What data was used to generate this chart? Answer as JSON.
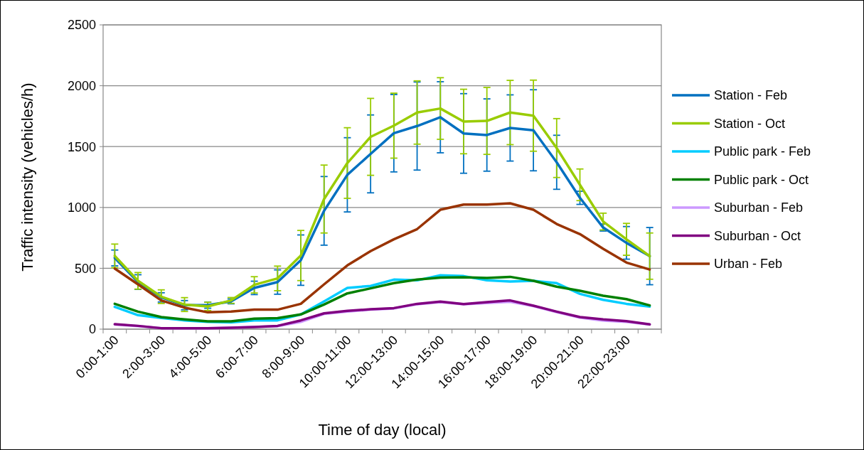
{
  "chart_data": {
    "type": "line",
    "xlabel": "Time of day (local)",
    "ylabel": "Traffic intensity (vehicles/h)",
    "categories": [
      "0:00-1:00",
      null,
      "2:00-3:00",
      null,
      "4:00-5:00",
      null,
      "6:00-7:00",
      null,
      "8:00-9:00",
      null,
      "10:00-11:00",
      null,
      "12:00-13:00",
      null,
      "14:00-15:00",
      null,
      "16:00-17:00",
      null,
      "18:00-19:00",
      null,
      "20:00-21:00",
      null,
      "22:00-23:00",
      null
    ],
    "ylim": [
      0,
      2500
    ],
    "yticks": [
      0,
      500,
      1000,
      1500,
      2000,
      2500
    ],
    "grid": "y",
    "legend": "right",
    "marker": "none",
    "line_style": "solid",
    "series": [
      {
        "name": "Station - Feb",
        "color": "#0070c0",
        "values": [
          585,
          387,
          261,
          197,
          197,
          228,
          339,
          387,
          567,
          972,
          1268,
          1440,
          1610,
          1669,
          1741,
          1608,
          1595,
          1653,
          1634,
          1371,
          1079,
          835,
          709,
          600
        ],
        "errors": [
          65,
          60,
          38,
          38,
          25,
          20,
          55,
          100,
          207,
          282,
          305,
          320,
          318,
          362,
          292,
          327,
          297,
          272,
          333,
          222,
          54,
          29,
          134,
          235
        ]
      },
      {
        "name": "Station - Oct",
        "color": "#99cc00",
        "values": [
          602,
          397,
          267,
          202,
          187,
          236,
          364,
          417,
          605,
          1069,
          1365,
          1580,
          1672,
          1780,
          1813,
          1706,
          1711,
          1780,
          1754,
          1488,
          1186,
          884,
          738,
          600
        ],
        "errors": [
          97,
          68,
          56,
          57,
          34,
          24,
          67,
          101,
          206,
          279,
          290,
          316,
          267,
          260,
          253,
          265,
          275,
          264,
          292,
          242,
          130,
          69,
          131,
          190
        ]
      },
      {
        "name": "Public park - Feb",
        "color": "#00ccff",
        "values": [
          183,
          115,
          92,
          72,
          60,
          56,
          72,
          72,
          121,
          228,
          339,
          355,
          407,
          401,
          442,
          436,
          401,
          391,
          397,
          378,
          290,
          241,
          208,
          185
        ]
      },
      {
        "name": "Public park - Oct",
        "color": "#008000",
        "values": [
          208,
          144,
          99,
          80,
          64,
          64,
          86,
          90,
          121,
          202,
          294,
          335,
          378,
          407,
          423,
          426,
          421,
          430,
          397,
          349,
          315,
          275,
          247,
          195
        ]
      },
      {
        "name": "Suburban - Feb",
        "color": "#cc99ff",
        "values": [
          38,
          25,
          8,
          8,
          8,
          12,
          18,
          25,
          60,
          125,
          145,
          160,
          170,
          205,
          222,
          205,
          215,
          225,
          190,
          140,
          95,
          70,
          60,
          38
        ]
      },
      {
        "name": "Suburban - Oct",
        "color": "#800080",
        "values": [
          41,
          27,
          8,
          8,
          8,
          12,
          18,
          27,
          72,
          130,
          150,
          164,
          173,
          208,
          226,
          206,
          222,
          236,
          193,
          144,
          99,
          80,
          66,
          40
        ]
      },
      {
        "name": "Urban - Feb",
        "color": "#993300",
        "values": [
          498,
          368,
          236,
          177,
          138,
          144,
          160,
          160,
          208,
          368,
          524,
          641,
          738,
          822,
          981,
          1024,
          1024,
          1034,
          981,
          864,
          781,
          660,
          547,
          490
        ]
      }
    ]
  }
}
